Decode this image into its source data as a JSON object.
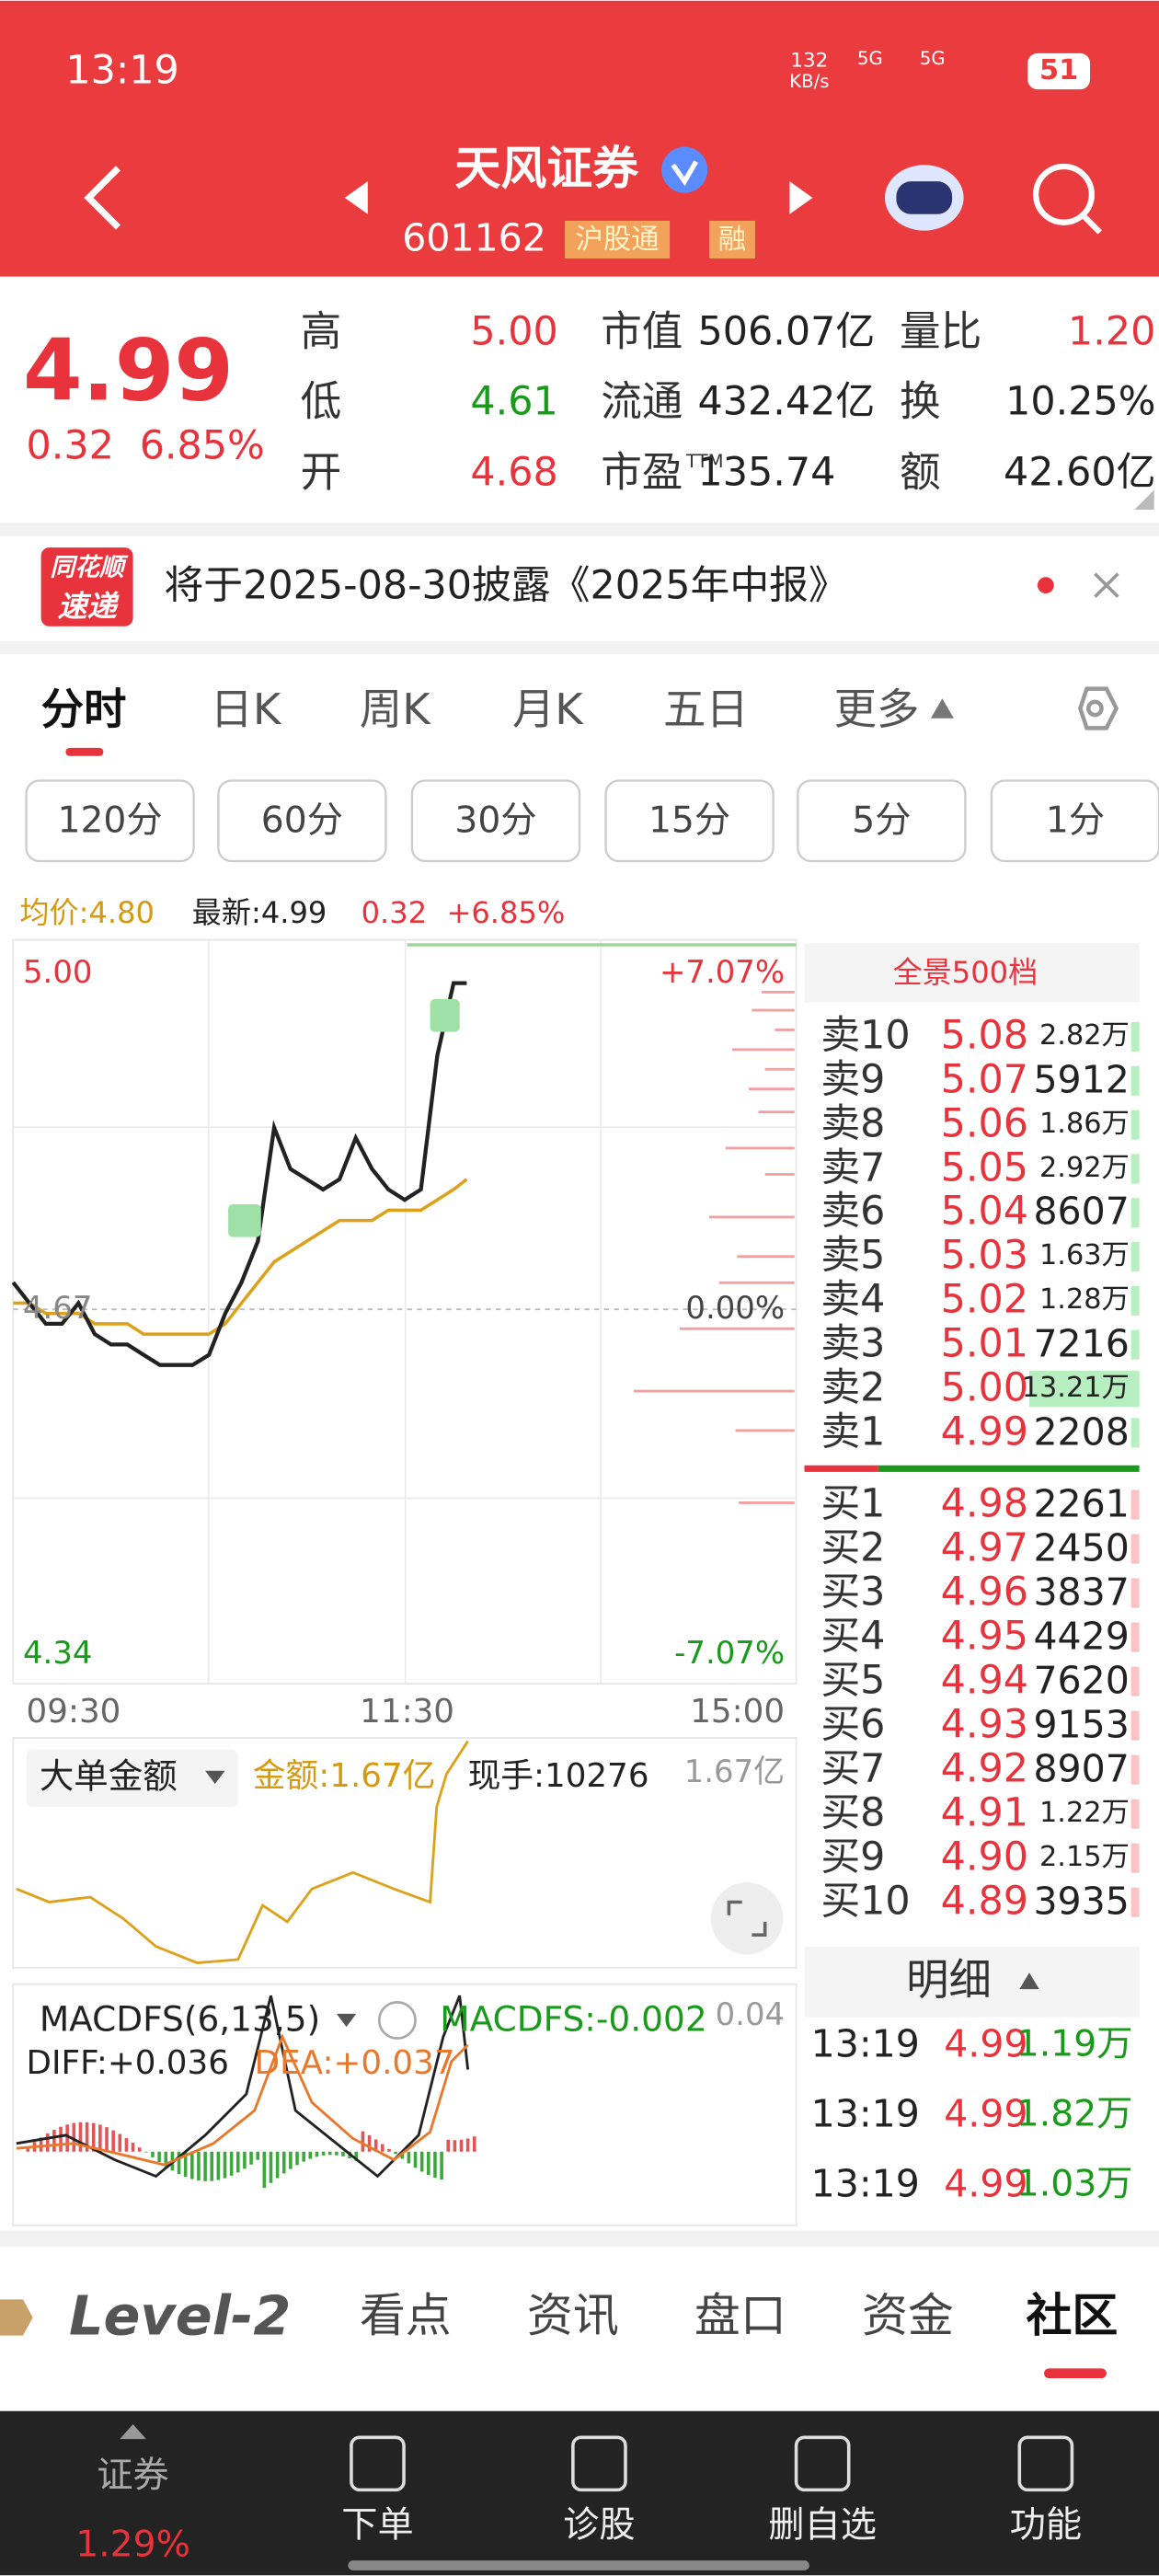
{
  "status": {
    "time": "13:19",
    "speed": "132",
    "speed_unit": "KB/s",
    "network": [
      "5G",
      "5G"
    ],
    "battery": "51"
  },
  "header": {
    "name": "天风证券",
    "code": "601162",
    "tags": [
      "沪股通",
      "融"
    ]
  },
  "quote": {
    "price": "4.99",
    "change": "0.32",
    "pct": "6.85%",
    "stats": [
      {
        "label": "高",
        "value": "5.00"
      },
      {
        "label": "低",
        "value": "4.61"
      },
      {
        "label": "开",
        "value": "4.68"
      },
      {
        "label": "市值",
        "value": "506.07亿"
      },
      {
        "label": "流通",
        "value": "432.42亿"
      },
      {
        "label": "市盈",
        "sup": "TTM",
        "value": "135.74"
      },
      {
        "label": "量比",
        "value": "1.20"
      },
      {
        "label": "换",
        "value": "10.25%"
      },
      {
        "label": "额",
        "value": "42.60亿"
      }
    ]
  },
  "notice": {
    "logo_top": "同花顺",
    "logo_bottom": "速递",
    "text": "将于2025-08-30披露《2025年中报》"
  },
  "tabs": [
    "分时",
    "日K",
    "周K",
    "月K",
    "五日",
    "更多"
  ],
  "periods": [
    "120分",
    "60分",
    "30分",
    "15分",
    "5分",
    "1分"
  ],
  "info": {
    "avg": "均价:4.80",
    "latest": "最新:4.99",
    "change": "0.32",
    "pct": "+6.85%"
  },
  "intraday": {
    "xlim": [
      0,
      240
    ],
    "ylim": [
      4.34,
      5.0
    ],
    "x": [
      0,
      5,
      10,
      15,
      20,
      25,
      30,
      35,
      40,
      45,
      50,
      55,
      60,
      65,
      70,
      75,
      80,
      85,
      90,
      95,
      100,
      105,
      110,
      115,
      120,
      125,
      130,
      135,
      139
    ],
    "price": [
      4.7,
      4.68,
      4.66,
      4.66,
      4.68,
      4.65,
      4.64,
      4.64,
      4.63,
      4.62,
      4.62,
      4.62,
      4.63,
      4.67,
      4.7,
      4.74,
      4.85,
      4.81,
      4.8,
      4.79,
      4.8,
      4.84,
      4.81,
      4.79,
      4.78,
      4.79,
      4.92,
      4.99,
      4.99
    ],
    "avg": [
      4.68,
      4.68,
      4.67,
      4.67,
      4.67,
      4.66,
      4.66,
      4.66,
      4.65,
      4.65,
      4.65,
      4.65,
      4.65,
      4.66,
      4.68,
      4.7,
      4.72,
      4.73,
      4.74,
      4.75,
      4.76,
      4.76,
      4.76,
      4.77,
      4.77,
      4.77,
      4.78,
      4.79,
      4.8
    ],
    "price_axis": [
      "5.00",
      "4.67",
      "4.34"
    ],
    "pct_axis": [
      "+7.07%",
      "0.00%",
      "-7.07%"
    ],
    "times": [
      "09:30",
      "11:30",
      "15:00"
    ]
  },
  "orderbook": {
    "title": "全景500档",
    "sell": [
      [
        "卖10",
        "5.08",
        "2.82万"
      ],
      [
        "卖9",
        "5.07",
        "5912"
      ],
      [
        "卖8",
        "5.06",
        "1.86万"
      ],
      [
        "卖7",
        "5.05",
        "2.92万"
      ],
      [
        "卖6",
        "5.04",
        "8607"
      ],
      [
        "卖5",
        "5.03",
        "1.63万"
      ],
      [
        "卖4",
        "5.02",
        "1.28万"
      ],
      [
        "卖3",
        "5.01",
        "7216"
      ],
      [
        "卖2",
        "5.00",
        "13.21万"
      ],
      [
        "卖1",
        "4.99",
        "2208"
      ]
    ],
    "buy": [
      [
        "买1",
        "4.98",
        "2261"
      ],
      [
        "买2",
        "4.97",
        "2450"
      ],
      [
        "买3",
        "4.96",
        "3837"
      ],
      [
        "买4",
        "4.95",
        "4429"
      ],
      [
        "买5",
        "4.94",
        "7620"
      ],
      [
        "买6",
        "4.93",
        "9153"
      ],
      [
        "买7",
        "4.92",
        "8907"
      ],
      [
        "买8",
        "4.91",
        "1.22万"
      ],
      [
        "买9",
        "4.90",
        "2.15万"
      ],
      [
        "买10",
        "4.89",
        "3935"
      ]
    ]
  },
  "detail": {
    "title": "明细",
    "rows": [
      [
        "13:19",
        "4.99",
        "1.19万"
      ],
      [
        "13:19",
        "4.99",
        "1.82万"
      ],
      [
        "13:19",
        "4.99",
        "1.03万"
      ]
    ]
  },
  "volume_panel": {
    "selector": "大单金额",
    "amount": "金额:1.67亿",
    "hand": "现手:10276",
    "max": "1.67亿"
  },
  "macd": {
    "name": "MACDFS(6,13,5)",
    "value": "MACDFS:-0.002",
    "max": "0.04",
    "diff": "DIFF:+0.036",
    "dea": "DEA:+0.037"
  },
  "bottom_tabs": {
    "brand": "Level-2",
    "items": [
      "看点",
      "资讯",
      "盘口",
      "资金",
      "社区"
    ]
  },
  "nav": [
    {
      "label": "证券",
      "sub": "1.29%"
    },
    {
      "label": "下单"
    },
    {
      "label": "诊股"
    },
    {
      "label": "删自选"
    },
    {
      "label": "功能"
    }
  ]
}
